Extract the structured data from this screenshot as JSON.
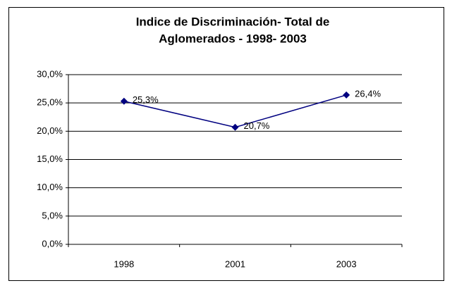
{
  "chart_data": {
    "type": "line",
    "title": [
      "Indice de Discriminación- Total de",
      "Aglomerados -  1998- 2003"
    ],
    "categories": [
      "1998",
      "2001",
      "2003"
    ],
    "values": [
      25.3,
      20.7,
      26.4
    ],
    "value_labels": [
      "25,3%",
      "20,7%",
      "26,4%"
    ],
    "color": "#000080",
    "ylim": [
      0,
      30
    ],
    "yticks": [
      {
        "value": 0,
        "label": "0,0%"
      },
      {
        "value": 5,
        "label": "5,0%"
      },
      {
        "value": 10,
        "label": "10,0%"
      },
      {
        "value": 15,
        "label": "15,0%"
      },
      {
        "value": 20,
        "label": "20,0%"
      },
      {
        "value": 25,
        "label": "25,0%"
      },
      {
        "value": 30,
        "label": "30,0%"
      }
    ],
    "grid": true
  }
}
